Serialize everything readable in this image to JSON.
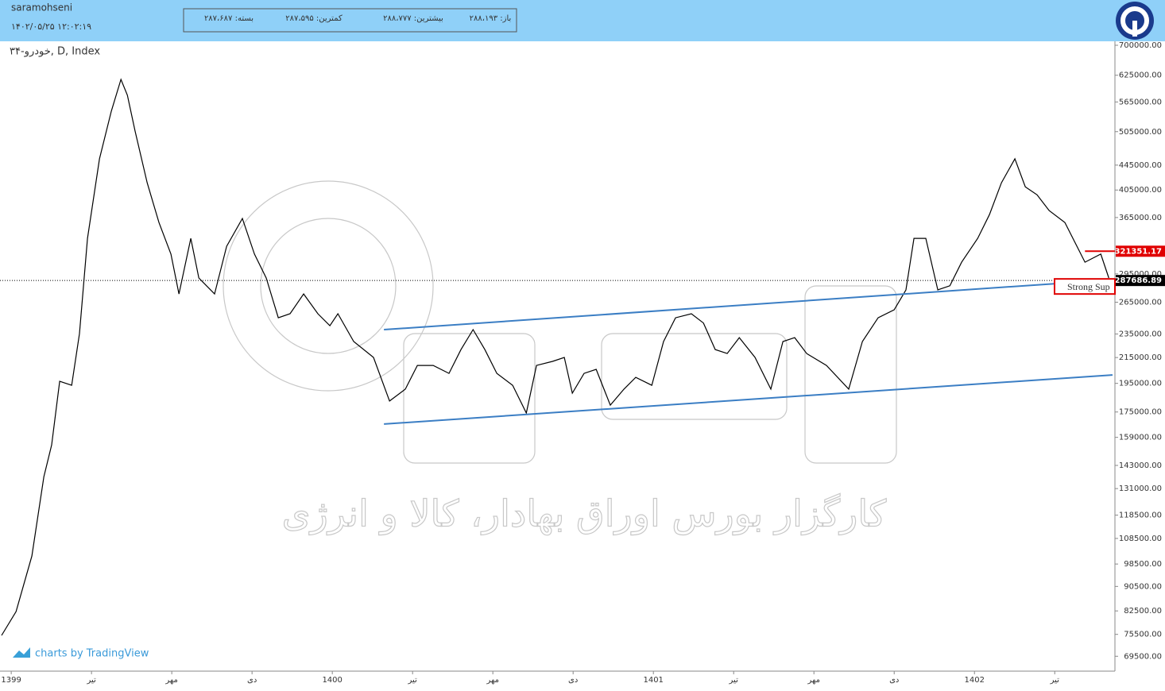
{
  "header": {
    "user": "saramohseni",
    "datetime": "۱۴۰۲/۰۵/۲۵ ۱۲:۰۲:۱۹",
    "quote": {
      "open": "باز: ۲۸۸،۱۹۳",
      "high": "بیشترین: ۲۸۸،۷۷۷",
      "low": "کمترین: ۲۸۷،۵۹۵",
      "close": "بسته: ۲۸۷،۶۸۷"
    }
  },
  "watermark": "کارگزار بورس اوراق بهادار، کالا و انرژی",
  "credit": "charts by TradingView",
  "chart_data": {
    "type": "line",
    "title": "خودرو-۳۴, D, Index",
    "color": "#000000",
    "log_scale": true,
    "x": [
      -0.36,
      0.18,
      0.77,
      1.22,
      1.51,
      1.81,
      2.26,
      2.55,
      2.85,
      3.3,
      3.74,
      4.1,
      4.34,
      4.63,
      5.08,
      5.52,
      5.97,
      6.27,
      6.71,
      7.01,
      7.6,
      8.05,
      8.64,
      9.09,
      9.53,
      9.98,
      10.42,
      10.93,
      11.46,
      11.91,
      12.21,
      12.8,
      13.54,
      14.14,
      14.73,
      15.18,
      15.77,
      16.36,
      16.81,
      17.26,
      17.7,
      18.15,
      18.74,
      19.25,
      19.63,
      20.23,
      20.67,
      20.97,
      21.41,
      21.86,
      22.39,
      22.9,
      23.34,
      23.94,
      24.38,
      24.83,
      25.42,
      25.87,
      26.31,
      26.76,
      27.21,
      27.8,
      28.39,
      28.84,
      29.28,
      29.73,
      30.47,
      31.3,
      31.81,
      32.4,
      33.0,
      33.44,
      33.74,
      34.18,
      34.63,
      35.08,
      35.52,
      36.12,
      36.56,
      37.01,
      37.51,
      37.9,
      38.34,
      38.79,
      39.38,
      39.83,
      40.13,
      40.72,
      41.02
    ],
    "values": [
      75200,
      82300,
      101500,
      137000,
      154500,
      196600,
      193600,
      235300,
      337400,
      455800,
      545700,
      615200,
      579500,
      506000,
      416300,
      358300,
      317900,
      273400,
      337400,
      290400,
      273400,
      327400,
      363700,
      317900,
      290400,
      249900,
      253700,
      273400,
      253700,
      242500,
      253700,
      228400,
      215100,
      182400,
      190800,
      208700,
      208700,
      202500,
      221600,
      238900,
      221600,
      202500,
      193600,
      174300,
      208700,
      211900,
      215100,
      187900,
      202500,
      205600,
      179600,
      190800,
      199500,
      193600,
      228400,
      249900,
      253700,
      245000,
      221600,
      218300,
      231800,
      215100,
      190800,
      228400,
      231800,
      218300,
      208700,
      190800,
      228400,
      249900,
      257500,
      277600,
      337400,
      337400,
      277600,
      282000,
      308300,
      337400,
      369100,
      416300,
      455800,
      410000,
      397700,
      374700,
      358300,
      327400,
      308300,
      317900,
      290400
    ],
    "xlim": [
      -0.42,
      41.25
    ],
    "xticks": [
      {
        "value": 0,
        "label": "1399"
      },
      {
        "value": 3,
        "label": "تیر"
      },
      {
        "value": 6,
        "label": "مهر"
      },
      {
        "value": 9,
        "label": "دی"
      },
      {
        "value": 12,
        "label": "1400"
      },
      {
        "value": 15,
        "label": "تیر"
      },
      {
        "value": 18,
        "label": "مهر"
      },
      {
        "value": 21,
        "label": "دی"
      },
      {
        "value": 24,
        "label": "1401"
      },
      {
        "value": 27,
        "label": "تیر"
      },
      {
        "value": 30,
        "label": "مهر"
      },
      {
        "value": 33,
        "label": "دی"
      },
      {
        "value": 36,
        "label": "1402"
      },
      {
        "value": 39,
        "label": "تیر"
      }
    ],
    "ylim": [
      65700,
      710600
    ],
    "yticks": [
      {
        "value": 700000,
        "label": "700000.00"
      },
      {
        "value": 625000,
        "label": "625000.00"
      },
      {
        "value": 565000,
        "label": "565000.00"
      },
      {
        "value": 505000,
        "label": "505000.00"
      },
      {
        "value": 445000,
        "label": "445000.00"
      },
      {
        "value": 405000,
        "label": "405000.00"
      },
      {
        "value": 365000,
        "label": "365000.00"
      },
      {
        "value": 295000,
        "label": "295000.00"
      },
      {
        "value": 265000,
        "label": "265000.00"
      },
      {
        "value": 235000,
        "label": "235000.00"
      },
      {
        "value": 215000,
        "label": "215000.00"
      },
      {
        "value": 195000,
        "label": "195000.00"
      },
      {
        "value": 175000,
        "label": "175000.00"
      },
      {
        "value": 159000,
        "label": "159000.00"
      },
      {
        "value": 143000,
        "label": "143000.00"
      },
      {
        "value": 131000,
        "label": "131000.00"
      },
      {
        "value": 118500,
        "label": "118500.00"
      },
      {
        "value": 108500,
        "label": "108500.00"
      },
      {
        "value": 98500,
        "label": "98500.00"
      },
      {
        "value": 90500,
        "label": "90500.00"
      },
      {
        "value": 82500,
        "label": "82500.00"
      },
      {
        "value": 75500,
        "label": "75500.00"
      },
      {
        "value": 69500,
        "label": "69500.00"
      }
    ],
    "trend_lines": [
      {
        "color": "#3b7ec4",
        "x": [
          13.93,
          41.16
        ],
        "values": [
          238900,
          288500
        ]
      },
      {
        "color": "#3b7ec4",
        "x": [
          13.93,
          41.16
        ],
        "values": [
          167200,
          201300
        ]
      }
    ],
    "levels": [
      {
        "value": 321351.17,
        "label": "321351.17",
        "color": "#e00000",
        "from": 40.13
      },
      {
        "value": 287686.89,
        "label": "287686.89",
        "color": "#000000",
        "from": -0.42
      }
    ],
    "annotation": "Strong Sup"
  }
}
